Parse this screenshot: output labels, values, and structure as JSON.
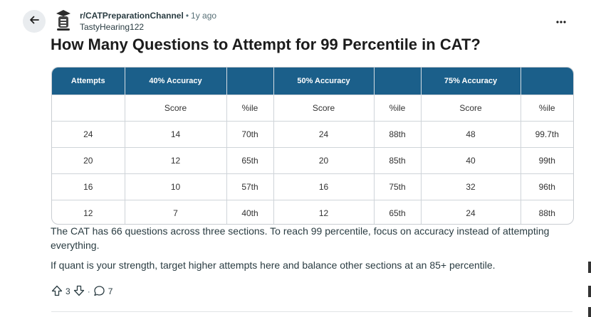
{
  "post": {
    "community": "r/CATPreparationChannel",
    "separator": "•",
    "age": "1y ago",
    "author": "TastyHearing122",
    "title": "How Many Questions to Attempt for 99 Percentile in CAT?"
  },
  "table": {
    "header": [
      "Attempts",
      "40% Accuracy",
      "",
      "50% Accuracy",
      "",
      "75% Accuracy",
      ""
    ],
    "subheader": [
      "",
      "Score",
      "%ile",
      "Score",
      "%ile",
      "Score",
      "%ile"
    ],
    "rows": [
      [
        "24",
        "14",
        "70th",
        "24",
        "88th",
        "48",
        "99.7th"
      ],
      [
        "20",
        "12",
        "65th",
        "20",
        "85th",
        "40",
        "99th"
      ],
      [
        "16",
        "10",
        "57th",
        "16",
        "75th",
        "32",
        "96th"
      ],
      [
        "12",
        "7",
        "40th",
        "12",
        "65th",
        "24",
        "88th"
      ]
    ]
  },
  "body": {
    "p1": "The CAT has 66 questions across three sections. To reach 99 percentile, focus on accuracy instead of attempting everything.",
    "p2": "If quant is your strength, target higher attempts here and balance other sections at an 85+ percentile."
  },
  "actions": {
    "votes": "3",
    "comments": "7",
    "separator": "·"
  },
  "icons": [
    "back-arrow-icon",
    "community-avatar-icon",
    "more-options-icon",
    "upvote-icon",
    "downvote-icon",
    "comment-icon"
  ],
  "colors": {
    "table_header_bg": "#1b5f8a",
    "back_button_bg": "#e9ecef",
    "text": "#1c1c1c"
  }
}
